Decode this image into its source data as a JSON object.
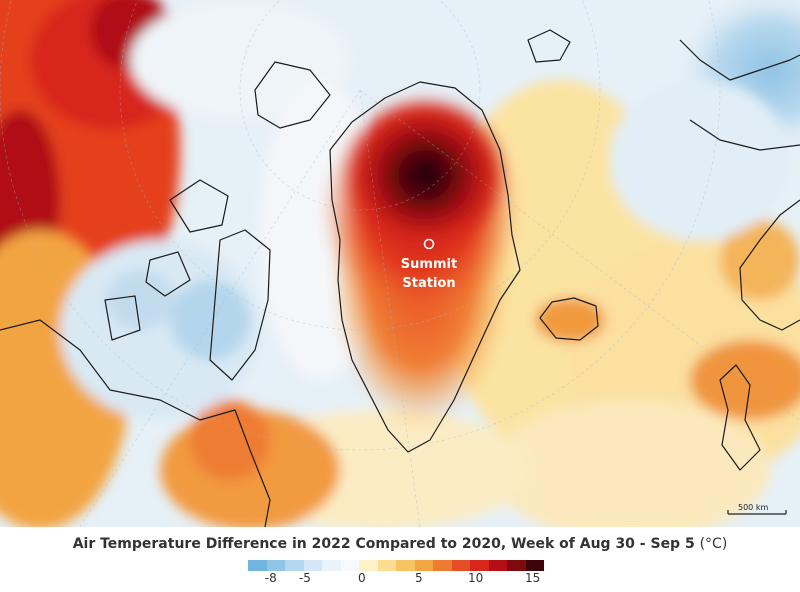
{
  "map": {
    "station": {
      "line1": "Summit",
      "line2": "Station"
    },
    "scale_label": "500 km"
  },
  "legend": {
    "title": "Air Temperature Difference in 2022 Compared to 2020, Week of Aug 30 - Sep 5",
    "unit": "(°C)",
    "ticks": [
      "-8",
      "-5",
      "0",
      "5",
      "10",
      "15"
    ],
    "tick_values": [
      -8,
      -5,
      0,
      5,
      10,
      15
    ],
    "range": [
      -10,
      16
    ],
    "colors": [
      "#6fb5de",
      "#8fc6e6",
      "#b3d7ee",
      "#d3e7f4",
      "#eaf3f9",
      "#f7fafc",
      "#fdf1c7",
      "#fbdd92",
      "#f7c463",
      "#f3a443",
      "#ee7b32",
      "#e64f26",
      "#d7261c",
      "#b40f16",
      "#7e0a10",
      "#3d0507"
    ]
  }
}
